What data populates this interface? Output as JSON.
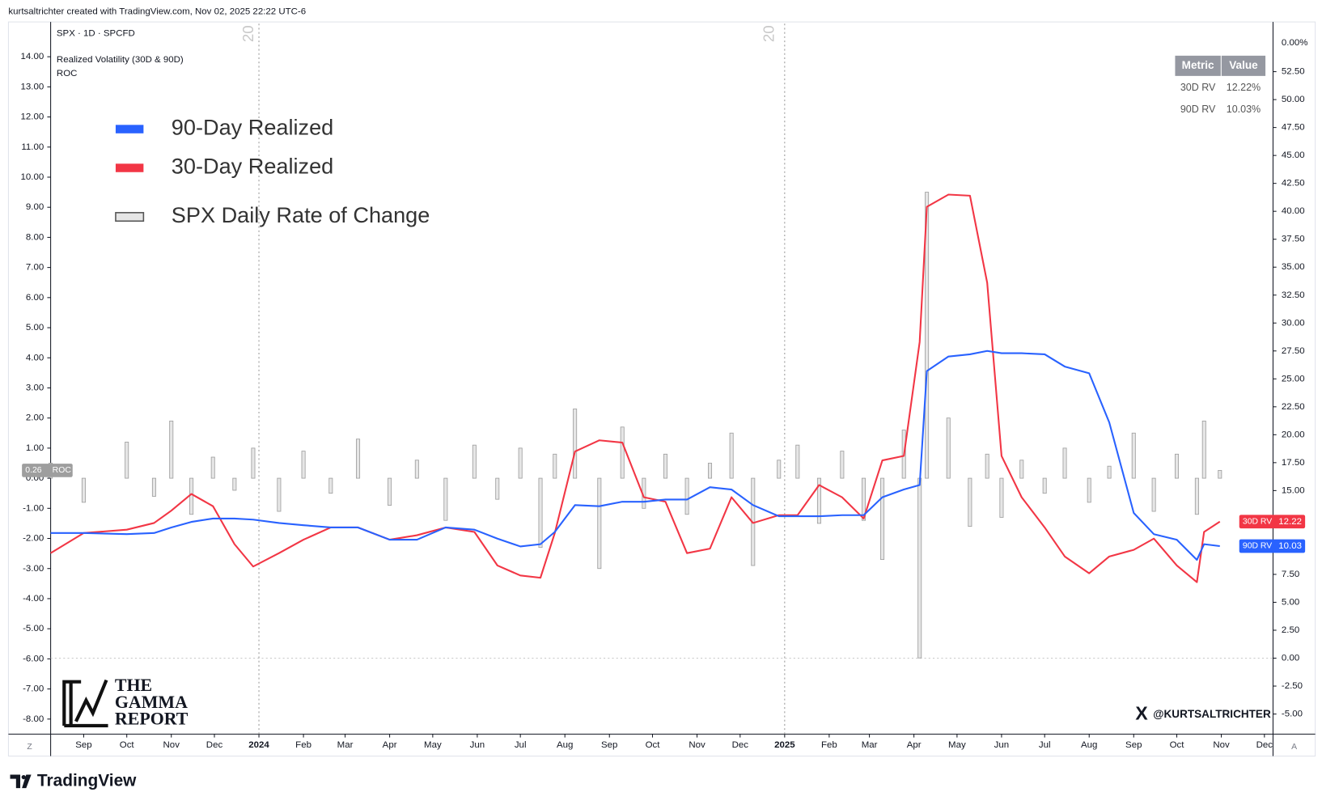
{
  "header": "kurtsaltrichter created with TradingView.com, Nov 02, 2025 22:22 UTC-6",
  "footer": "TradingView",
  "symbol": "SPX · 1D · SPCFD",
  "watermark": "@KURTSALTRICHTER",
  "logo": [
    "THE",
    "GAMMA",
    "REPORT"
  ],
  "axis_buttons": [
    "Z",
    "A"
  ],
  "session_mark": "20",
  "table": {
    "header": [
      "Metric",
      "Value"
    ],
    "rows": [
      [
        "30D RV",
        "12.22%"
      ],
      [
        "90D RV",
        "10.03%"
      ]
    ]
  },
  "chart_data": {
    "type": "line",
    "title": "Realized Volatility (30D & 90D)",
    "roc_label": "ROC",
    "y2_top_label": "0.00%",
    "xlim": [
      "2023-08-09",
      "2025-12-07"
    ],
    "xticks": [
      {
        "value": "2023-09-01",
        "label": "Sep"
      },
      {
        "value": "2023-10-01",
        "label": "Oct"
      },
      {
        "value": "2023-11-01",
        "label": "Nov"
      },
      {
        "value": "2023-12-01",
        "label": "Dec"
      },
      {
        "value": "2024-01-01",
        "label": "2024"
      },
      {
        "value": "2024-02-01",
        "label": "Feb"
      },
      {
        "value": "2024-03-01",
        "label": "Mar"
      },
      {
        "value": "2024-04-01",
        "label": "Apr"
      },
      {
        "value": "2024-05-01",
        "label": "May"
      },
      {
        "value": "2024-06-01",
        "label": "Jun"
      },
      {
        "value": "2024-07-01",
        "label": "Jul"
      },
      {
        "value": "2024-08-01",
        "label": "Aug"
      },
      {
        "value": "2024-09-01",
        "label": "Sep"
      },
      {
        "value": "2024-10-01",
        "label": "Oct"
      },
      {
        "value": "2024-11-01",
        "label": "Nov"
      },
      {
        "value": "2024-12-01",
        "label": "Dec"
      },
      {
        "value": "2025-01-01",
        "label": "2025"
      },
      {
        "value": "2025-02-01",
        "label": "Feb"
      },
      {
        "value": "2025-03-01",
        "label": "Mar"
      },
      {
        "value": "2025-04-01",
        "label": "Apr"
      },
      {
        "value": "2025-05-01",
        "label": "May"
      },
      {
        "value": "2025-06-01",
        "label": "Jun"
      },
      {
        "value": "2025-07-01",
        "label": "Jul"
      },
      {
        "value": "2025-08-01",
        "label": "Aug"
      },
      {
        "value": "2025-09-01",
        "label": "Sep"
      },
      {
        "value": "2025-10-01",
        "label": "Oct"
      },
      {
        "value": "2025-11-01",
        "label": "Nov"
      },
      {
        "value": "2025-12-01",
        "label": "Dec"
      }
    ],
    "ylim": [
      -8.5,
      15.1
    ],
    "yticks": [
      {
        "value": 14,
        "label": "14.00"
      },
      {
        "value": 13,
        "label": "13.00"
      },
      {
        "value": 12,
        "label": "12.00"
      },
      {
        "value": 11,
        "label": "11.00"
      },
      {
        "value": 10,
        "label": "10.00"
      },
      {
        "value": 9,
        "label": "9.00"
      },
      {
        "value": 8,
        "label": "8.00"
      },
      {
        "value": 7,
        "label": "7.00"
      },
      {
        "value": 6,
        "label": "6.00"
      },
      {
        "value": 5,
        "label": "5.00"
      },
      {
        "value": 4,
        "label": "4.00"
      },
      {
        "value": 3,
        "label": "3.00"
      },
      {
        "value": 2,
        "label": "2.00"
      },
      {
        "value": 1,
        "label": "1.00"
      },
      {
        "value": 0,
        "label": "0.00"
      },
      {
        "value": -1,
        "label": "-1.00"
      },
      {
        "value": -2,
        "label": "-2.00"
      },
      {
        "value": -3,
        "label": "-3.00"
      },
      {
        "value": -4,
        "label": "-4.00"
      },
      {
        "value": -5,
        "label": "-5.00"
      },
      {
        "value": -6,
        "label": "-6.00"
      },
      {
        "value": -7,
        "label": "-7.00"
      },
      {
        "value": -8,
        "label": "-8.00"
      }
    ],
    "y2lim": [
      -6.8,
      56.8
    ],
    "y2ticks": [
      {
        "value": 52.5,
        "label": "52.50"
      },
      {
        "value": 50,
        "label": "50.00"
      },
      {
        "value": 47.5,
        "label": "47.50"
      },
      {
        "value": 45,
        "label": "45.00"
      },
      {
        "value": 42.5,
        "label": "42.50"
      },
      {
        "value": 40,
        "label": "40.00"
      },
      {
        "value": 37.5,
        "label": "37.50"
      },
      {
        "value": 35,
        "label": "35.00"
      },
      {
        "value": 32.5,
        "label": "32.50"
      },
      {
        "value": 30,
        "label": "30.00"
      },
      {
        "value": 27.5,
        "label": "27.50"
      },
      {
        "value": 25,
        "label": "25.00"
      },
      {
        "value": 22.5,
        "label": "22.50"
      },
      {
        "value": 20,
        "label": "20.00"
      },
      {
        "value": 17.5,
        "label": "17.50"
      },
      {
        "value": 15,
        "label": "15.00"
      },
      {
        "value": 12.5,
        "label": "12.50"
      },
      {
        "value": 10,
        "label": "10.00"
      },
      {
        "value": 7.5,
        "label": "7.50"
      },
      {
        "value": 5,
        "label": "5.00"
      },
      {
        "value": 2.5,
        "label": "2.50"
      },
      {
        "value": 0,
        "label": "0.00"
      },
      {
        "value": -2.5,
        "label": "-2.50"
      },
      {
        "value": -5,
        "label": "-5.00"
      }
    ],
    "x": [
      "2023-08-09",
      "2023-09-01",
      "2023-10-01",
      "2023-10-20",
      "2023-11-01",
      "2023-11-15",
      "2023-11-30",
      "2023-12-15",
      "2023-12-28",
      "2024-01-15",
      "2024-02-01",
      "2024-02-20",
      "2024-03-10",
      "2024-04-01",
      "2024-04-20",
      "2024-05-10",
      "2024-05-30",
      "2024-06-15",
      "2024-07-01",
      "2024-07-15",
      "2024-07-25",
      "2024-08-08",
      "2024-08-25",
      "2024-09-10",
      "2024-09-25",
      "2024-10-10",
      "2024-10-25",
      "2024-11-10",
      "2024-11-25",
      "2024-12-10",
      "2024-12-28",
      "2025-01-10",
      "2025-01-25",
      "2025-02-10",
      "2025-02-25",
      "2025-03-10",
      "2025-03-25",
      "2025-04-05",
      "2025-04-10",
      "2025-04-25",
      "2025-05-10",
      "2025-05-22",
      "2025-06-01",
      "2025-06-15",
      "2025-07-01",
      "2025-07-15",
      "2025-08-01",
      "2025-08-15",
      "2025-09-01",
      "2025-09-15",
      "2025-10-01",
      "2025-10-15",
      "2025-10-20",
      "2025-10-31"
    ],
    "series": [
      {
        "name": "30-Day Realized",
        "color": "#f23645",
        "axis": "y2",
        "values": [
          9.4,
          11.2,
          11.5,
          12.1,
          13.2,
          14.7,
          13.6,
          10.2,
          8.2,
          9.4,
          10.6,
          11.7,
          11.7,
          10.6,
          11.0,
          11.7,
          11.3,
          8.3,
          7.4,
          7.2,
          11.2,
          18.5,
          19.5,
          19.3,
          14.4,
          14.0,
          9.4,
          9.8,
          14.4,
          12.1,
          12.8,
          12.8,
          15.5,
          14.4,
          12.5,
          17.7,
          18.1,
          28.3,
          40.4,
          41.5,
          41.4,
          33.6,
          18.1,
          14.4,
          11.7,
          9.1,
          7.6,
          9.1,
          9.7,
          10.7,
          8.3,
          6.8,
          11.3,
          12.22
        ]
      },
      {
        "name": "90-Day Realized",
        "color": "#2962ff",
        "axis": "y2",
        "values": [
          11.2,
          11.2,
          11.1,
          11.2,
          11.7,
          12.2,
          12.5,
          12.5,
          12.4,
          12.1,
          11.9,
          11.7,
          11.7,
          10.6,
          10.6,
          11.7,
          11.5,
          10.7,
          10.0,
          10.2,
          11.3,
          13.7,
          13.6,
          14.0,
          14.0,
          14.2,
          14.2,
          15.3,
          15.1,
          13.7,
          12.7,
          12.7,
          12.7,
          12.8,
          12.8,
          14.4,
          15.1,
          15.5,
          25.7,
          27.0,
          27.2,
          27.5,
          27.3,
          27.3,
          27.2,
          26.1,
          25.5,
          21.1,
          13.0,
          11.1,
          10.6,
          8.8,
          10.2,
          10.03
        ]
      },
      {
        "name": "SPX Daily Rate of Change",
        "color": "#9e9e9e",
        "axis": "y",
        "values": [
          0.5,
          -0.8,
          1.2,
          -0.6,
          1.9,
          -1.2,
          0.7,
          -0.4,
          1.0,
          -1.1,
          0.9,
          -0.5,
          1.3,
          -0.9,
          0.6,
          -1.4,
          1.1,
          -0.7,
          1.0,
          -2.3,
          0.8,
          2.3,
          -3.0,
          1.7,
          -1.0,
          0.8,
          -1.2,
          0.5,
          1.5,
          -2.9,
          0.6,
          1.1,
          -1.5,
          0.9,
          -1.4,
          -2.7,
          1.6,
          -5.97,
          9.5,
          2.0,
          -1.6,
          0.8,
          -1.3,
          0.6,
          -0.5,
          1.0,
          -0.8,
          0.4,
          1.5,
          -1.1,
          0.8,
          -1.2,
          1.9,
          0.26
        ]
      }
    ]
  }
}
